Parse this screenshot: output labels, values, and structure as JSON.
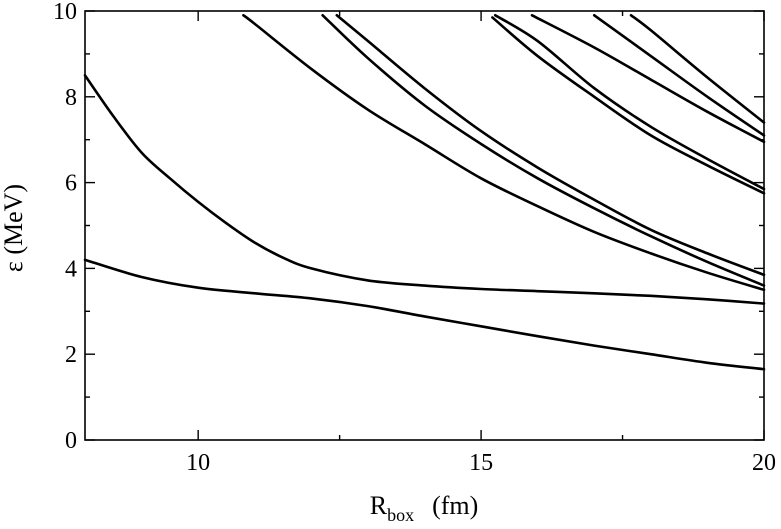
{
  "chart_data": {
    "type": "line",
    "xlabel": {
      "main": "R",
      "sub": "box",
      "unit": "(fm)"
    },
    "ylabel": "ε  (MeV)",
    "xlim": [
      8,
      20
    ],
    "ylim": [
      0,
      10
    ],
    "x_major_ticks": [
      10,
      15,
      20
    ],
    "x_minor_ticks": [
      12.5,
      17.5
    ],
    "y_major_ticks": [
      0,
      2,
      4,
      6,
      8,
      10
    ],
    "y_minor_ticks": [
      1,
      3,
      5,
      7,
      9
    ],
    "x_tick_labels": [
      "10",
      "15",
      "20"
    ],
    "y_tick_labels": [
      "0",
      "2",
      "4",
      "6",
      "8",
      "10"
    ],
    "grid": false,
    "legend": "none",
    "series": [
      {
        "x": [
          8,
          9,
          10,
          11,
          12,
          13,
          14,
          15,
          16,
          17,
          18,
          19,
          20
        ],
        "y": [
          4.2,
          3.8,
          3.55,
          3.42,
          3.3,
          3.12,
          2.88,
          2.65,
          2.42,
          2.2,
          2.0,
          1.8,
          1.65
        ]
      },
      {
        "x": [
          8,
          8.5,
          9,
          9.5,
          10,
          10.5,
          11,
          11.5,
          12,
          13,
          14,
          15,
          16,
          17,
          18,
          19,
          20
        ],
        "y": [
          8.5,
          7.55,
          6.7,
          6.1,
          5.55,
          5.05,
          4.6,
          4.25,
          4.0,
          3.72,
          3.6,
          3.52,
          3.47,
          3.42,
          3.36,
          3.28,
          3.18
        ]
      },
      {
        "x": [
          10.8,
          11,
          12,
          13,
          14,
          15,
          16,
          17,
          18,
          19,
          20
        ],
        "y": [
          9.9,
          9.7,
          8.65,
          7.7,
          6.9,
          6.1,
          5.45,
          4.85,
          4.35,
          3.9,
          3.5
        ]
      },
      {
        "x": [
          12.2,
          13,
          14,
          15,
          16,
          17,
          18,
          19,
          20
        ],
        "y": [
          9.9,
          8.9,
          7.8,
          6.9,
          6.1,
          5.4,
          4.75,
          4.15,
          3.6
        ]
      },
      {
        "x": [
          12.45,
          13,
          14,
          15,
          16,
          17,
          18,
          19,
          20
        ],
        "y": [
          9.9,
          9.3,
          8.2,
          7.2,
          6.35,
          5.6,
          4.9,
          4.35,
          3.85
        ]
      },
      {
        "x": [
          15.2,
          16,
          17,
          18,
          19,
          20
        ],
        "y": [
          9.85,
          8.95,
          8.0,
          7.1,
          6.4,
          5.75
        ]
      },
      {
        "x": [
          15.25,
          16,
          17,
          18,
          19,
          20
        ],
        "y": [
          9.9,
          9.3,
          8.2,
          7.3,
          6.55,
          5.85
        ]
      },
      {
        "x": [
          15.9,
          17,
          18,
          19,
          20
        ],
        "y": [
          9.9,
          9.15,
          8.4,
          7.65,
          6.95
        ]
      },
      {
        "x": [
          17.0,
          18,
          19,
          20
        ],
        "y": [
          9.9,
          8.95,
          8.0,
          7.1
        ]
      },
      {
        "x": [
          17.65,
          18,
          19,
          20
        ],
        "y": [
          9.9,
          9.55,
          8.45,
          7.4
        ]
      }
    ]
  }
}
